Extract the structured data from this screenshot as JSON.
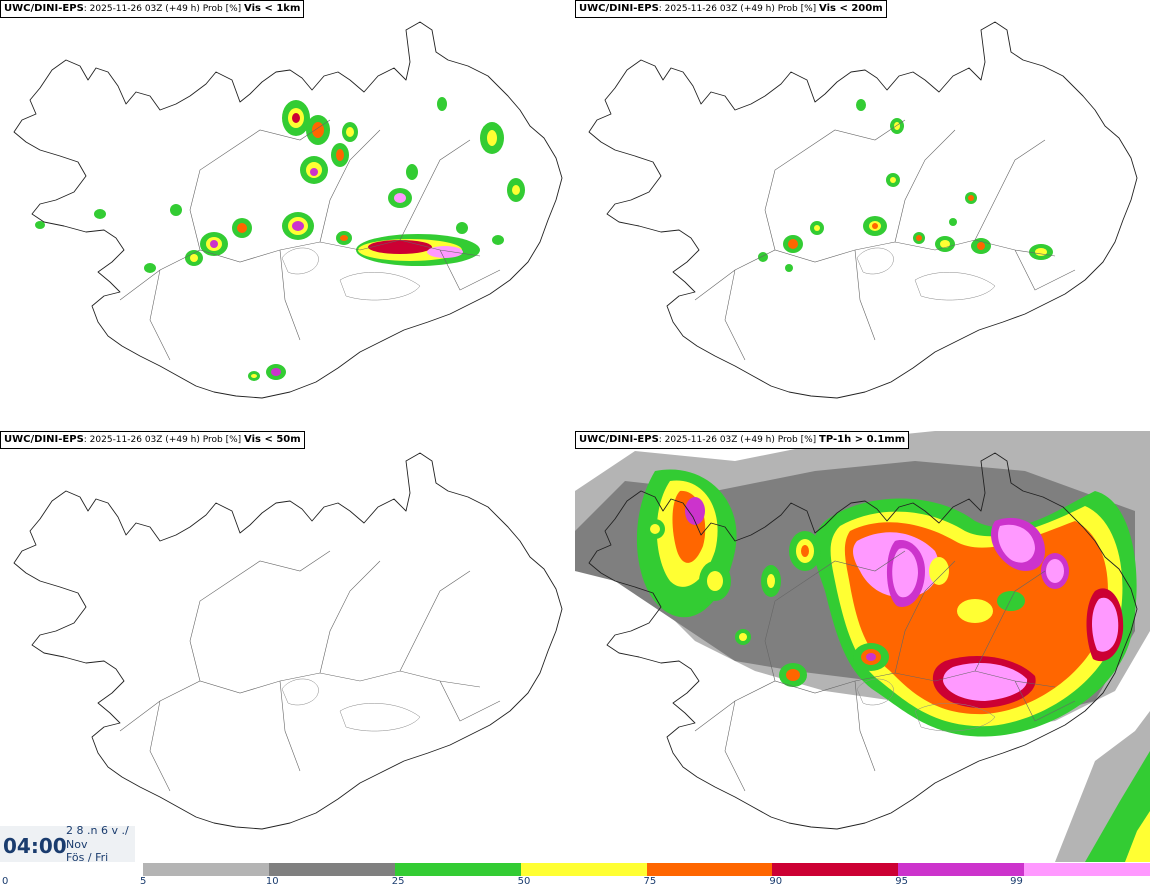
{
  "panels": [
    {
      "source": "UWC/DINI-EPS",
      "info": ": 2025-11-26 03Z (+49 h) Prob [%]",
      "variable": "Vis < 1km"
    },
    {
      "source": "UWC/DINI-EPS",
      "info": ": 2025-11-26 03Z (+49 h) Prob [%]",
      "variable": "Vis < 200m"
    },
    {
      "source": "UWC/DINI-EPS",
      "info": ": 2025-11-26 03Z (+49 h) Prob [%]",
      "variable": "Vis < 50m"
    },
    {
      "source": "UWC/DINI-EPS",
      "info": ": 2025-11-26 03Z (+49 h) Prob [%]",
      "variable": "TP-1h > 0.1mm"
    }
  ],
  "time": {
    "clock": "04:00",
    "line1": "2 8 .n 6 v ./",
    "line2": "Nov",
    "line3": "Fös / Fri"
  },
  "colorbar": {
    "colors": [
      "#b4b4b4",
      "#7f7f7f",
      "#33cc33",
      "#ffff33",
      "#ff6600",
      "#cc0033",
      "#cc33cc",
      "#ff99ff"
    ],
    "ticks": [
      "0",
      "5",
      "10",
      "25",
      "50",
      "75",
      "90",
      "95",
      "99"
    ]
  }
}
